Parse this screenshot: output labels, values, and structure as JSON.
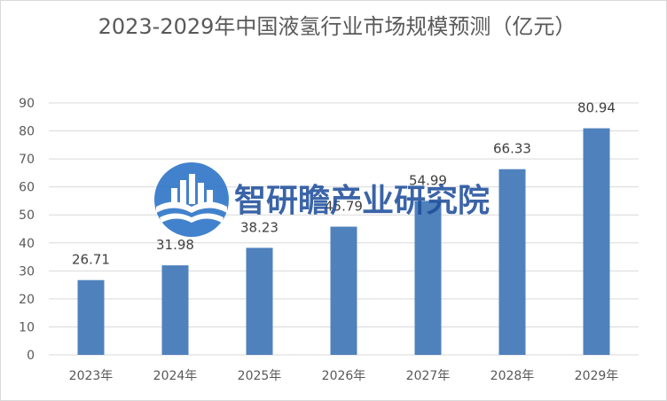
{
  "chart_data": {
    "type": "bar",
    "title": "2023-2029年中国液氢行业市场规模预测（亿元）",
    "categories": [
      "2023年",
      "2024年",
      "2025年",
      "2026年",
      "2027年",
      "2028年",
      "2029年"
    ],
    "values": [
      26.71,
      31.98,
      38.23,
      45.79,
      54.99,
      66.33,
      80.94
    ],
    "data_labels": [
      "26.71",
      "31.98",
      "38.23",
      "45.79",
      "54.99",
      "66.33",
      "80.94"
    ],
    "ylim": [
      0,
      90
    ],
    "yticks": [
      0,
      10,
      20,
      30,
      40,
      50,
      60,
      70,
      80,
      90
    ],
    "bar_color": "#4f81bd",
    "grid": true,
    "legend": "none"
  },
  "watermark": {
    "text": "智研瞻产业研究院",
    "icon": "skyline-book-logo-icon",
    "color": "#1f4e9c"
  }
}
